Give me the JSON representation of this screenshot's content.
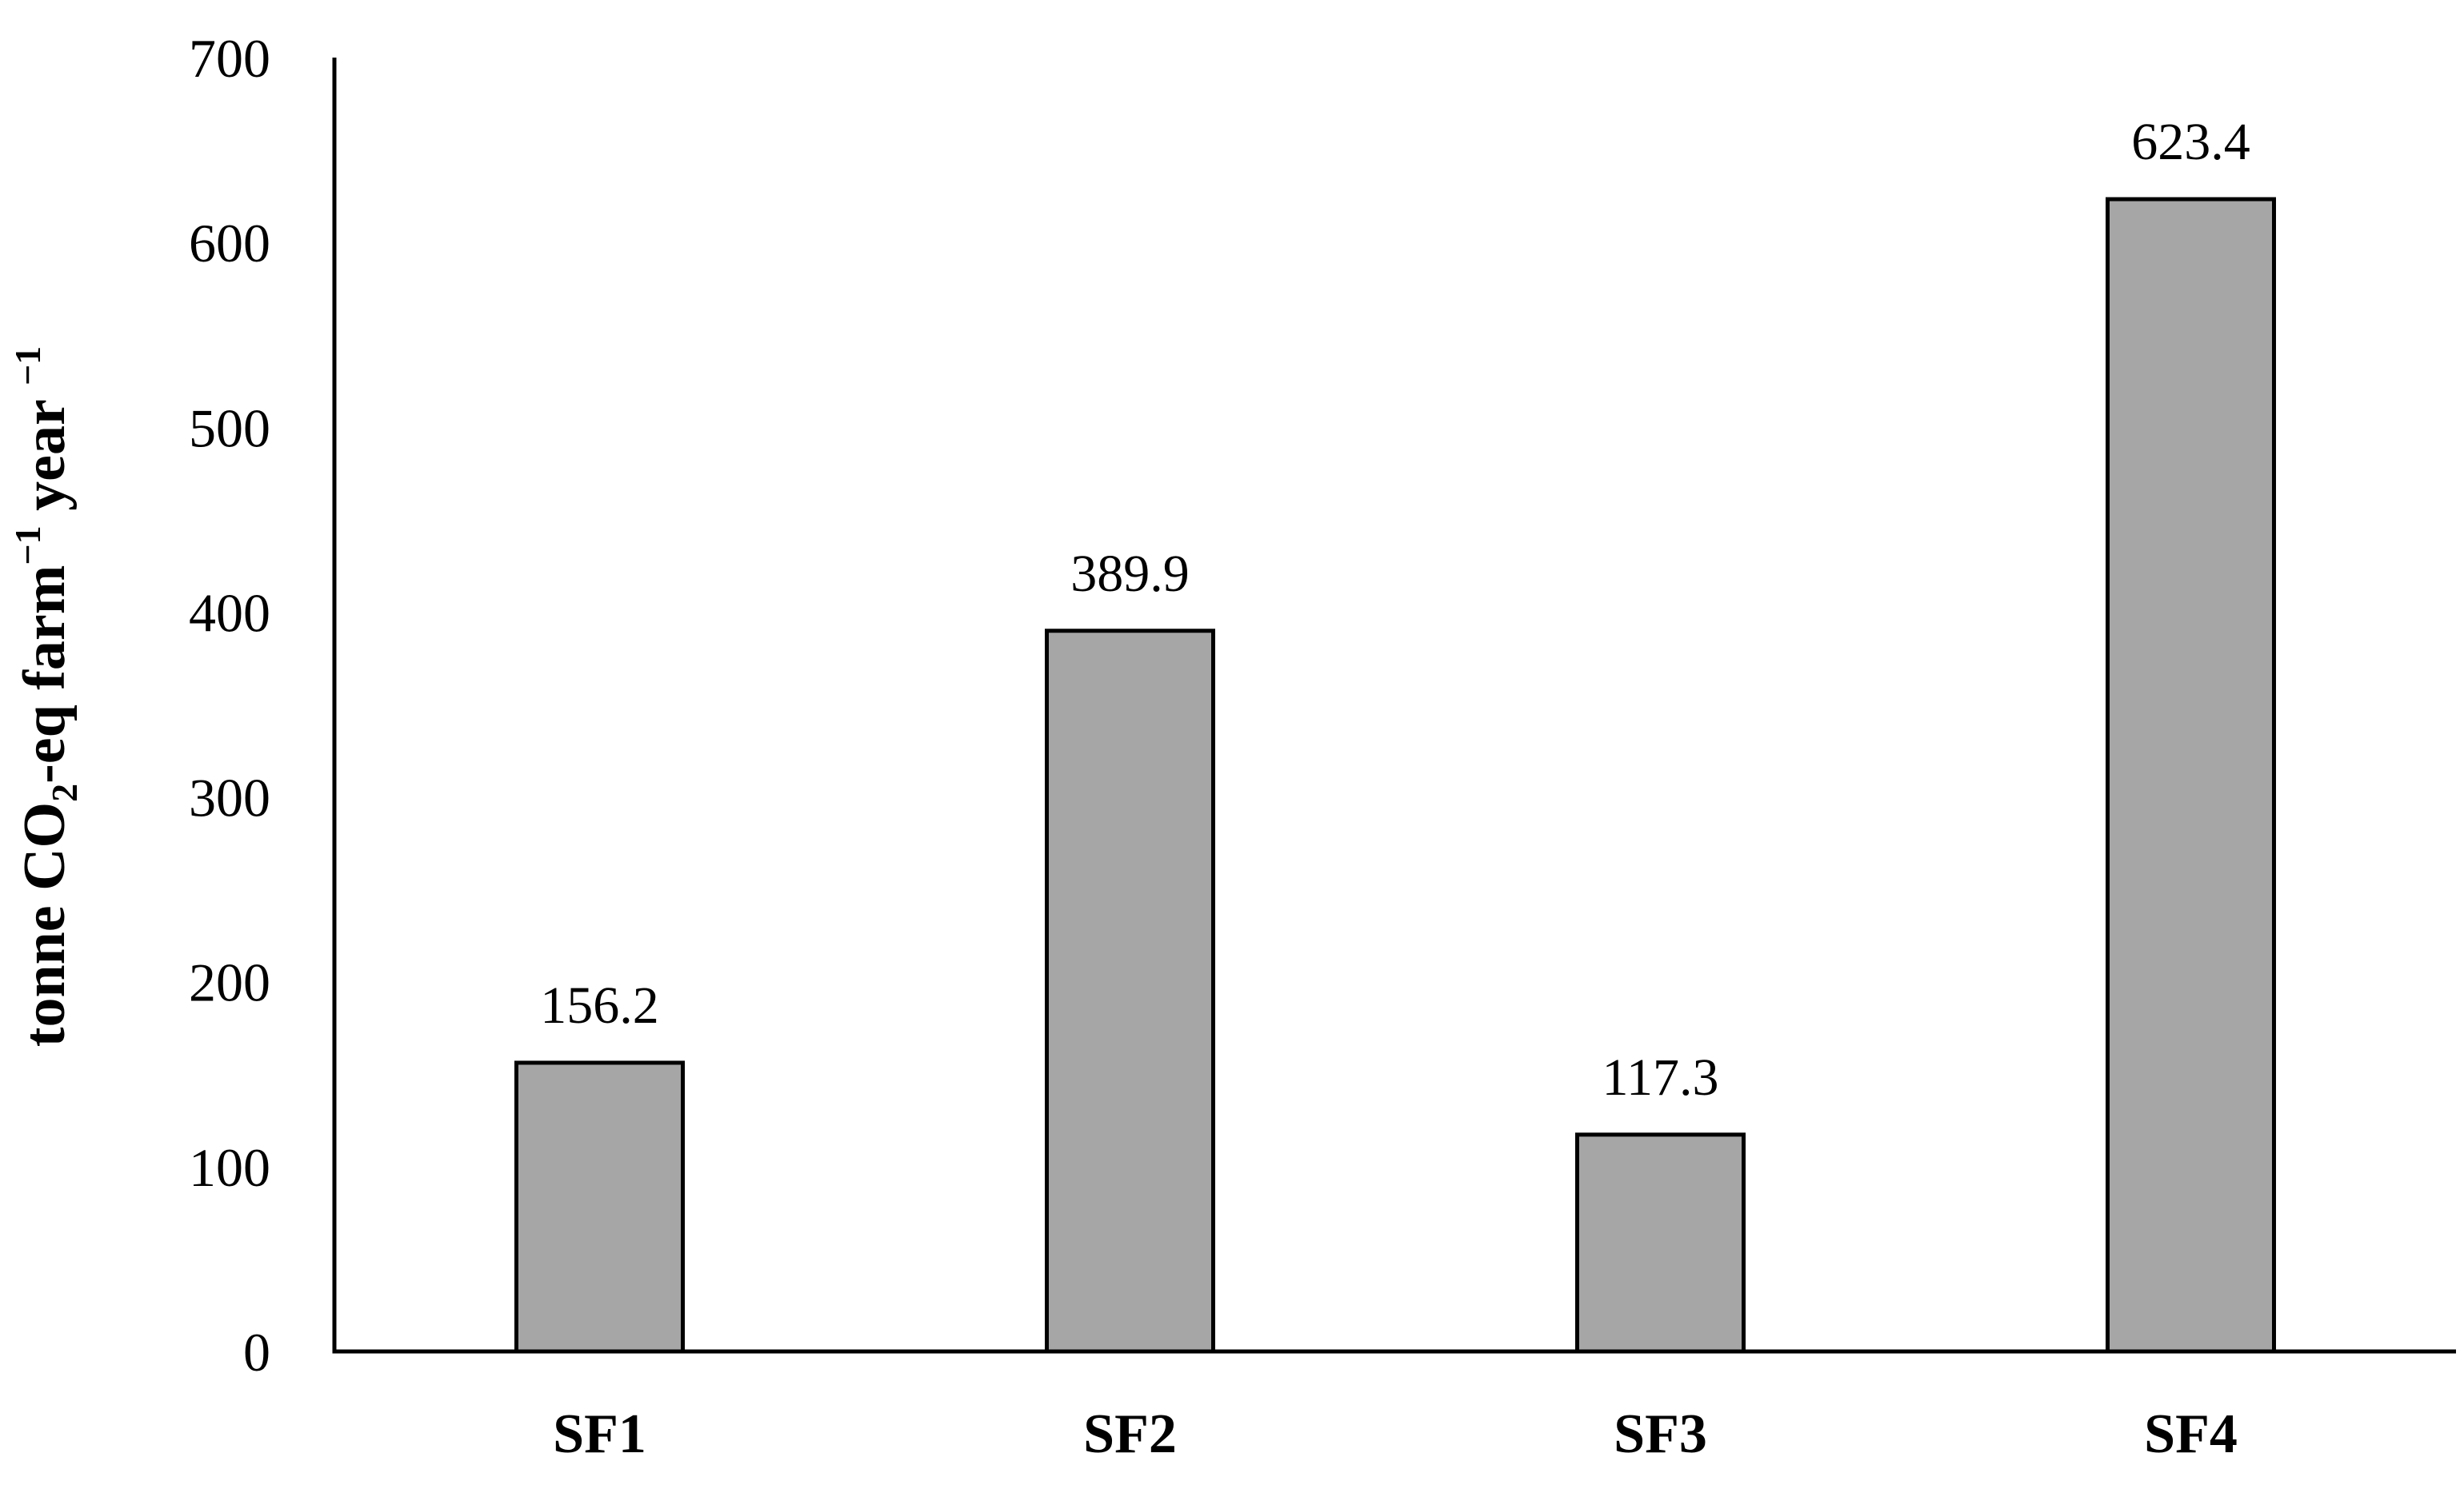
{
  "chart_data": {
    "type": "bar",
    "categories": [
      "SF1",
      "SF2",
      "SF3",
      "SF4"
    ],
    "values": [
      156.2,
      389.9,
      117.3,
      623.4
    ],
    "data_labels": [
      "156.2",
      "389.9",
      "117.3",
      "623.4"
    ],
    "title": "",
    "xlabel": "",
    "ylabel": {
      "parts": [
        {
          "text": "tonne CO",
          "shift": "normal"
        },
        {
          "text": "2",
          "shift": "sub"
        },
        {
          "text": "-eq farm",
          "shift": "normal"
        },
        {
          "text": "−1",
          "shift": "super"
        },
        {
          "text": " year ",
          "shift": "normal"
        },
        {
          "text": "−1",
          "shift": "super"
        }
      ]
    },
    "ylim": [
      0,
      700
    ],
    "yticks": [
      0,
      100,
      200,
      300,
      400,
      500,
      600,
      700
    ],
    "grid": false,
    "legend": "none",
    "colors": {
      "bar_fill": "#a6a6a6",
      "bar_stroke": "#000000"
    }
  }
}
